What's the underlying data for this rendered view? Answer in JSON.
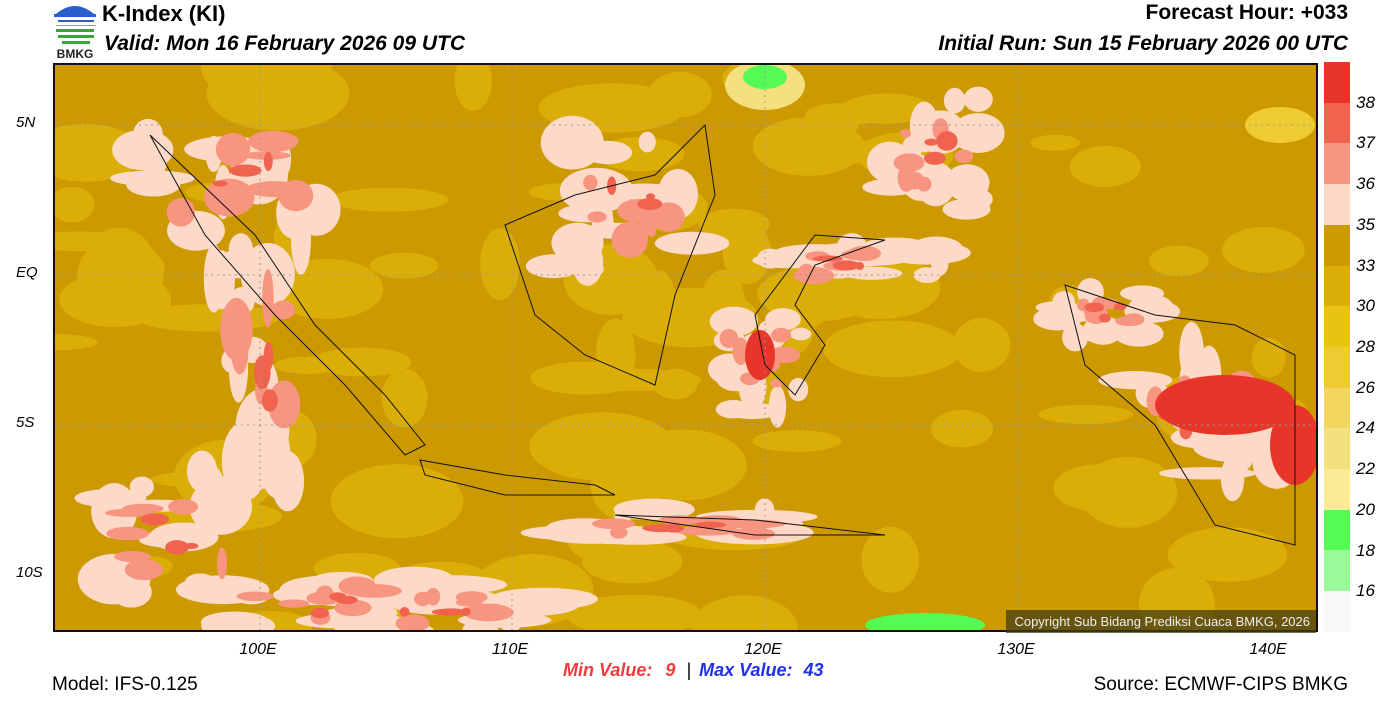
{
  "header": {
    "title": "K-Index (KI)",
    "valid": "Valid: Mon 16 February 2026 09 UTC",
    "forecast_hour": "Forecast Hour: +033",
    "initial_run": "Initial Run: Sun 15 February 2026 00 UTC",
    "logo_text": "BMKG"
  },
  "colorbar": {
    "colors": [
      "#e8352a",
      "#f0644f",
      "#f89580",
      "#fddac8",
      "#cc9a00",
      "#daae06",
      "#e8c314",
      "#eecb30",
      "#f2d660",
      "#f5e080",
      "#fbeb97",
      "#55fa55",
      "#98fa98",
      "#f8f8f8"
    ],
    "labels": [
      "38",
      "37",
      "36",
      "35",
      "33",
      "30",
      "28",
      "26",
      "24",
      "22",
      "20",
      "18",
      "16"
    ]
  },
  "axes": {
    "lat_labels": [
      "5N",
      "EQ",
      "5S",
      "10S"
    ],
    "lon_labels": [
      "100E",
      "110E",
      "120E",
      "130E",
      "140E"
    ]
  },
  "map": {
    "copyright": "Copyright Sub Bidang Prediksi Cuaca BMKG, 2026"
  },
  "footer": {
    "min_label": "Min Value:",
    "min_value": "9",
    "separator": "|",
    "max_label": "Max Value:",
    "max_value": "43",
    "model": "Model: IFS-0.125",
    "source": "Source: ECMWF-CIPS BMKG"
  }
}
